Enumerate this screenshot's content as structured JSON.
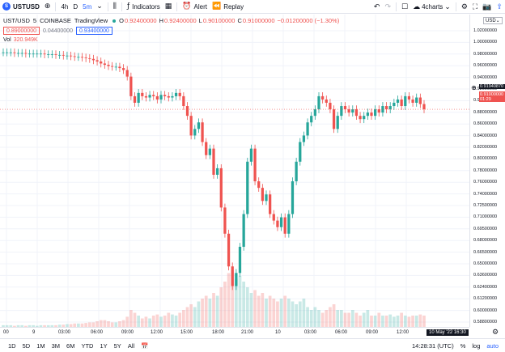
{
  "toolbar": {
    "symbol": "USTUSD",
    "intervals": [
      "4h",
      "D",
      "5m"
    ],
    "indicators_label": "Indicators",
    "alert_label": "Alert",
    "replay_label": "Replay",
    "layout_label": "4charts"
  },
  "legend": {
    "title": "UST/USD",
    "interval": "5",
    "exchange": "COINBASE",
    "source": "TradingView",
    "o_label": "O",
    "o_value": "0.92400000",
    "h_label": "H",
    "h_value": "0.92400000",
    "l_label": "L",
    "l_value": "0.90100000",
    "c_label": "C",
    "c_value": "0.91000000",
    "change": "−0.01200000 (−1.30%)",
    "sell_price": "0.89000000",
    "spread": "0.04400000",
    "buy_price": "0.93400000",
    "vol_label": "Vol",
    "vol_value": "320.949K"
  },
  "price_axis": {
    "currency": "USD",
    "ticks": [
      "1.02000000",
      "1.00000000",
      "0.98000000",
      "0.96000000",
      "0.94000000",
      "0.92000000",
      "0.90000000",
      "0.88000000",
      "0.86000000",
      "0.84000000",
      "0.82000000",
      "0.80000000",
      "0.78000000",
      "0.76000000",
      "0.74000000",
      "0.72500000",
      "0.71000000",
      "0.69500000",
      "0.68000000",
      "0.66500000",
      "0.65000000",
      "0.63600000",
      "0.62400000",
      "0.61200000",
      "0.60000000",
      "0.58800000"
    ],
    "last_price": "0.91940870",
    "current_price": "0.91000000",
    "countdown": "01:29"
  },
  "time_axis": {
    "ticks": [
      "00",
      "9",
      "03:00",
      "06:00",
      "09:00",
      "12:00",
      "15:00",
      "18:00",
      "21:00",
      "10",
      "03:00",
      "06:00",
      "09:00",
      "12:00"
    ],
    "crosshair_label": "10 May '22 16:30"
  },
  "bottom": {
    "ranges": [
      "1D",
      "5D",
      "1M",
      "3M",
      "6M",
      "YTD",
      "1Y",
      "5Y",
      "All"
    ],
    "clock": "14:28:31 (UTC)",
    "percent_label": "%",
    "log_label": "log",
    "auto_label": "auto"
  },
  "chart_data": {
    "type": "candlestick",
    "title": "",
    "ylim": [
      0.585,
      1.03
    ],
    "up_color": "#26a69a",
    "down_color": "#ef5350",
    "closes": [
      0.997,
      0.997,
      0.997,
      0.996,
      0.996,
      0.996,
      0.995,
      0.995,
      0.995,
      0.995,
      0.995,
      0.994,
      0.994,
      0.994,
      0.993,
      0.993,
      0.992,
      0.992,
      0.991,
      0.99,
      0.99,
      0.989,
      0.988,
      0.987,
      0.985,
      0.983,
      0.98,
      0.978,
      0.976,
      0.975,
      0.975,
      0.973,
      0.97,
      0.96,
      0.93,
      0.92,
      0.935,
      0.93,
      0.928,
      0.932,
      0.93,
      0.925,
      0.932,
      0.93,
      0.928,
      0.93,
      0.935,
      0.93,
      0.915,
      0.9,
      0.87,
      0.88,
      0.89,
      0.86,
      0.84,
      0.85,
      0.81,
      0.82,
      0.76,
      0.72,
      0.67,
      0.64,
      0.66,
      0.7,
      0.75,
      0.83,
      0.85,
      0.8,
      0.79,
      0.77,
      0.78,
      0.75,
      0.74,
      0.73,
      0.745,
      0.72,
      0.75,
      0.8,
      0.83,
      0.86,
      0.87,
      0.89,
      0.9,
      0.91,
      0.93,
      0.925,
      0.92,
      0.91,
      0.88,
      0.9,
      0.915,
      0.91,
      0.905,
      0.91,
      0.9,
      0.895,
      0.9,
      0.905,
      0.9,
      0.91,
      0.905,
      0.915,
      0.91,
      0.915,
      0.92,
      0.925,
      0.915,
      0.93,
      0.925,
      0.92,
      0.928,
      0.918,
      0.91
    ],
    "volume": [
      0.03,
      0.03,
      0.03,
      0.02,
      0.03,
      0.03,
      0.02,
      0.03,
      0.03,
      0.02,
      0.03,
      0.03,
      0.03,
      0.03,
      0.03,
      0.04,
      0.04,
      0.05,
      0.05,
      0.06,
      0.06,
      0.06,
      0.07,
      0.08,
      0.08,
      0.1,
      0.12,
      0.12,
      0.1,
      0.08,
      0.08,
      0.1,
      0.12,
      0.18,
      0.3,
      0.25,
      0.2,
      0.15,
      0.18,
      0.15,
      0.2,
      0.22,
      0.18,
      0.2,
      0.25,
      0.22,
      0.2,
      0.25,
      0.3,
      0.35,
      0.4,
      0.35,
      0.45,
      0.5,
      0.55,
      0.5,
      0.6,
      0.55,
      0.7,
      0.8,
      0.95,
      1.0,
      0.85,
      0.9,
      0.8,
      0.7,
      0.6,
      0.65,
      0.55,
      0.6,
      0.5,
      0.55,
      0.5,
      0.45,
      0.5,
      0.55,
      0.5,
      0.45,
      0.4,
      0.45,
      0.5,
      0.35,
      0.3,
      0.35,
      0.3,
      0.25,
      0.3,
      0.35,
      0.4,
      0.3,
      0.3,
      0.25,
      0.25,
      0.3,
      0.25,
      0.2,
      0.25,
      0.3,
      0.2,
      0.2,
      0.25,
      0.2,
      0.2,
      0.22,
      0.18,
      0.2,
      0.25,
      0.2,
      0.18,
      0.2,
      0.2,
      0.22,
      0.2
    ]
  }
}
